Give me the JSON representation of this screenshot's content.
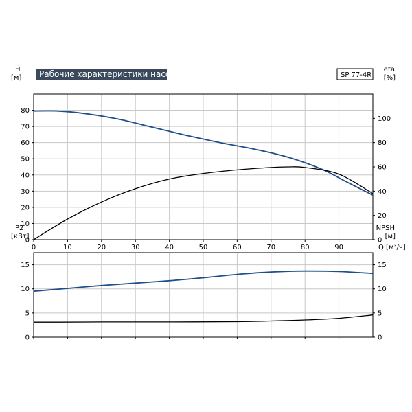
{
  "chart_data": [
    {
      "type": "line",
      "title": "Рабочие характеристики насоса",
      "model": "SP 77-4R",
      "xlabel": "Q [м³/ч]",
      "ylabel_left": "H",
      "ylabel_left_unit": "[м]",
      "ylabel_right": "eta",
      "ylabel_right_unit": "[%]",
      "xlim": [
        0,
        100
      ],
      "ylim_left": [
        0,
        90
      ],
      "ylim_right": [
        0,
        120
      ],
      "xticks": [
        "0",
        "10",
        "20",
        "30",
        "40",
        "50",
        "60",
        "70",
        "80",
        "90"
      ],
      "xtick_values": [
        0,
        10,
        20,
        30,
        40,
        50,
        60,
        70,
        80,
        90
      ],
      "yticks_left": [
        "0",
        "10",
        "20",
        "30",
        "40",
        "50",
        "60",
        "70",
        "80"
      ],
      "ytick_values_left": [
        0,
        10,
        20,
        30,
        40,
        50,
        60,
        70,
        80
      ],
      "yticks_right": [
        "0",
        "20",
        "40",
        "60",
        "80",
        "100"
      ],
      "ytick_values_right": [
        0,
        20,
        40,
        60,
        80,
        100
      ],
      "grid": true,
      "series": [
        {
          "axis": "left",
          "color": "#1f4e8c",
          "x": [
            0,
            7,
            15,
            25,
            35,
            45,
            55,
            65,
            75,
            85,
            92,
            100
          ],
          "y": [
            79.5,
            79.5,
            78,
            74.5,
            69.5,
            64.5,
            60,
            56,
            51,
            43.5,
            36,
            27.5
          ]
        },
        {
          "axis": "right",
          "color": "#000000",
          "x": [
            0,
            10,
            20,
            30,
            40,
            50,
            60,
            70,
            75,
            80,
            90,
            100
          ],
          "y": [
            0,
            17,
            31,
            42,
            50,
            54.5,
            57.5,
            59.5,
            60,
            59.5,
            54,
            38
          ]
        }
      ]
    },
    {
      "type": "line",
      "ylabel_left": "P2",
      "ylabel_left_unit": "[кВт]",
      "ylabel_right": "NPSH",
      "ylabel_right_unit": "[м]",
      "xlim": [
        0,
        100
      ],
      "ylim_left": [
        0,
        17.5
      ],
      "ylim_right": [
        0,
        17.5
      ],
      "xtick_values": [
        0,
        10,
        20,
        30,
        40,
        50,
        60,
        70,
        80,
        90
      ],
      "yticks_left": [
        "0",
        "5",
        "10",
        "15"
      ],
      "ytick_values_left": [
        0,
        5,
        10,
        15
      ],
      "yticks_right": [
        "0",
        "5",
        "10",
        "15"
      ],
      "ytick_values_right": [
        0,
        5,
        10,
        15
      ],
      "grid": true,
      "series": [
        {
          "axis": "left",
          "color": "#1f4e8c",
          "x": [
            0,
            10,
            20,
            30,
            40,
            50,
            60,
            70,
            80,
            90,
            100
          ],
          "y": [
            9.5,
            10.1,
            10.7,
            11.2,
            11.7,
            12.3,
            13.0,
            13.5,
            13.7,
            13.6,
            13.2
          ]
        },
        {
          "axis": "right",
          "color": "#000000",
          "x": [
            0,
            7,
            20,
            40,
            60,
            70,
            80,
            90,
            100
          ],
          "y": [
            3.1,
            3.1,
            3.15,
            3.15,
            3.2,
            3.35,
            3.55,
            3.9,
            4.6
          ]
        }
      ]
    }
  ]
}
